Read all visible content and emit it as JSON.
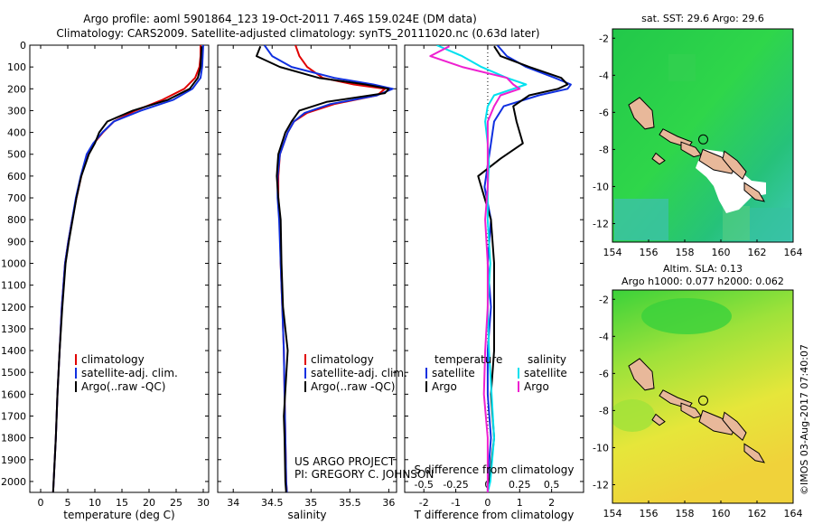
{
  "header": {
    "title_line1": "Argo profile: aoml 5901864_123 19-Oct-2011 7.46S 159.024E (DM data)",
    "title_line2": "Climatology: CARS2009. Satellite-adjusted climatology: synTS_20111020.nc (0.63d later)"
  },
  "footer": {
    "project": "US ARGO PROJECT",
    "pi": "PI: GREGORY C. JOHNSON",
    "stamp": "©IMOS 03-Aug-2017 07:40:07"
  },
  "colors": {
    "climatology": "#e00000",
    "satellite": "#1030e0",
    "argo": "#000000",
    "salinity_sat": "#00e0ee",
    "salinity_argo": "#ee20d0"
  },
  "chart_data": [
    {
      "type": "line",
      "title": "",
      "xlabel": "temperature (deg C)",
      "ylabel": "",
      "xlim": [
        -2,
        31
      ],
      "ylim": [
        2050,
        0
      ],
      "xticks": [
        0,
        5,
        10,
        15,
        20,
        25,
        30
      ],
      "xtick_labels": [
        "0",
        "5",
        "10",
        "15",
        "20",
        "25",
        "30"
      ],
      "yticks": [
        0,
        100,
        200,
        300,
        400,
        500,
        600,
        700,
        800,
        900,
        1000,
        1100,
        1200,
        1300,
        1400,
        1500,
        1600,
        1700,
        1800,
        1900,
        2000
      ],
      "ytick_labels": [
        "0",
        "100",
        "200",
        "300",
        "400",
        "500",
        "600",
        "700",
        "800",
        "900",
        "1000",
        "1100",
        "1200",
        "1300",
        "1400",
        "1500",
        "1600",
        "1700",
        "1800",
        "1900",
        "2000"
      ],
      "legend": [
        "climatology",
        "satellite-adj. clim.",
        "Argo(..raw -QC)"
      ],
      "series": [
        {
          "name": "climatology",
          "color": "#e00000",
          "x": [
            29.5,
            29.5,
            29.3,
            28.5,
            26.5,
            22.5,
            17.5,
            13.5,
            11.5,
            9.8,
            8.6,
            7.5,
            6.6,
            5.8,
            5.1,
            4.5,
            3.9,
            3.5,
            3.1,
            2.8,
            2.6,
            2.4,
            2.3
          ],
          "y": [
            0,
            50,
            100,
            150,
            200,
            250,
            300,
            350,
            400,
            450,
            500,
            600,
            700,
            800,
            900,
            1000,
            1200,
            1400,
            1600,
            1800,
            1900,
            2000,
            2050
          ]
        },
        {
          "name": "satellite-adj. clim.",
          "color": "#1030e0",
          "x": [
            30.0,
            29.9,
            29.8,
            29.5,
            28.0,
            24.5,
            18.5,
            13.5,
            11.4,
            9.7,
            8.5,
            7.4,
            6.5,
            5.8,
            5.1,
            4.5,
            3.9,
            3.5,
            3.1,
            2.8,
            2.6,
            2.4,
            2.3
          ],
          "y": [
            0,
            50,
            100,
            150,
            200,
            250,
            300,
            350,
            400,
            450,
            500,
            600,
            700,
            800,
            900,
            1000,
            1200,
            1400,
            1600,
            1800,
            1900,
            2000,
            2050
          ]
        },
        {
          "name": "Argo(..raw -QC)",
          "color": "#000000",
          "x": [
            29.7,
            29.6,
            29.5,
            29.0,
            27.5,
            23.5,
            17.0,
            12.3,
            10.8,
            10.0,
            8.9,
            7.5,
            6.6,
            5.9,
            5.2,
            4.6,
            4.0,
            3.5,
            3.1,
            2.8,
            2.6,
            2.4,
            2.3
          ],
          "y": [
            5,
            50,
            100,
            150,
            200,
            250,
            300,
            350,
            400,
            450,
            500,
            600,
            700,
            800,
            900,
            1000,
            1200,
            1400,
            1600,
            1800,
            1900,
            2000,
            2050
          ]
        }
      ]
    },
    {
      "type": "line",
      "title": "",
      "xlabel": "salinity",
      "ylabel": "",
      "xlim": [
        33.8,
        36.1
      ],
      "ylim": [
        2050,
        0
      ],
      "xticks": [
        34,
        34.5,
        35,
        35.5,
        36
      ],
      "xtick_labels": [
        "34",
        "34.5",
        "35",
        "35.5",
        "36"
      ],
      "legend": [
        "climatology",
        "satellite-adj. clim.",
        "Argo(..raw -QC)"
      ],
      "series": [
        {
          "name": "climatology",
          "color": "#e00000",
          "x": [
            34.8,
            34.85,
            34.95,
            35.15,
            35.55,
            35.95,
            35.85,
            35.3,
            34.95,
            34.78,
            34.7,
            34.6,
            34.58,
            34.58,
            34.6,
            34.61,
            34.63,
            34.65,
            34.66,
            34.67,
            34.68,
            34.69
          ],
          "y": [
            0,
            50,
            100,
            150,
            180,
            200,
            230,
            270,
            310,
            350,
            400,
            500,
            600,
            700,
            800,
            1000,
            1200,
            1400,
            1600,
            1800,
            2000,
            2050
          ]
        },
        {
          "name": "satellite-adj. clim.",
          "color": "#1030e0",
          "x": [
            34.4,
            34.5,
            34.75,
            35.3,
            35.8,
            36.05,
            35.85,
            35.25,
            34.92,
            34.78,
            34.7,
            34.6,
            34.57,
            34.57,
            34.59,
            34.61,
            34.63,
            34.65,
            34.66,
            34.67,
            34.68,
            34.69
          ],
          "y": [
            0,
            50,
            100,
            150,
            180,
            200,
            230,
            270,
            310,
            350,
            400,
            500,
            600,
            700,
            800,
            1000,
            1200,
            1400,
            1600,
            1800,
            2000,
            2050
          ]
        },
        {
          "name": "Argo(..raw -QC)",
          "color": "#000000",
          "x": [
            34.35,
            34.3,
            34.6,
            35.1,
            35.7,
            36.0,
            35.95,
            35.2,
            34.85,
            34.75,
            34.67,
            34.58,
            34.56,
            34.58,
            34.61,
            34.62,
            34.64,
            34.7,
            34.65,
            34.66,
            34.67,
            34.68
          ],
          "y": [
            5,
            50,
            100,
            150,
            180,
            200,
            220,
            260,
            300,
            350,
            400,
            500,
            600,
            700,
            800,
            1000,
            1200,
            1400,
            1700,
            1800,
            2000,
            2050
          ]
        }
      ]
    },
    {
      "type": "line",
      "title": "",
      "xlabel": "T difference from climatology",
      "xlabel2": "S difference from climatology",
      "ylabel": "",
      "xlim": [
        -2.6,
        3.0
      ],
      "ylim": [
        2050,
        0
      ],
      "xticks": [
        -2,
        -1,
        0,
        1,
        2
      ],
      "xtick_labels": [
        "-2",
        "-1",
        "0",
        "1",
        "2"
      ],
      "xticks2": [
        -0.5,
        -0.25,
        0,
        0.25,
        0.5
      ],
      "xtick2_labels": [
        "-0.5",
        "-0.25",
        "0",
        "0.25",
        "0.5"
      ],
      "legend_groups": {
        "left_title": "temperature",
        "right_title": "salinity",
        "left": [
          "satellite",
          "Argo"
        ],
        "right": [
          "satellite",
          "Argo"
        ]
      },
      "series": [
        {
          "name": "temperature satellite",
          "group": "temperature",
          "color": "#1030e0",
          "x": [
            0.3,
            0.6,
            1.2,
            2.1,
            2.6,
            2.5,
            1.6,
            0.5,
            0.2,
            0.1,
            0,
            -0.1,
            0.1,
            0,
            0.1,
            0,
            0,
            0.1,
            0,
            0
          ],
          "y": [
            0,
            50,
            100,
            150,
            180,
            200,
            230,
            280,
            350,
            450,
            550,
            650,
            800,
            1000,
            1200,
            1400,
            1600,
            1800,
            2000,
            2050
          ]
        },
        {
          "name": "temperature Argo",
          "group": "temperature",
          "color": "#000000",
          "x": [
            0.2,
            0.4,
            1.3,
            2.3,
            2.5,
            2.2,
            1.3,
            0.8,
            0.9,
            1.1,
            0.4,
            -0.3,
            0.1,
            0.2,
            0.2,
            0.2,
            0.1,
            0.2,
            0.05,
            0.0
          ],
          "y": [
            5,
            50,
            100,
            150,
            180,
            200,
            230,
            280,
            350,
            450,
            520,
            600,
            800,
            1000,
            1200,
            1400,
            1600,
            1800,
            2000,
            2050
          ]
        },
        {
          "name": "salinity satellite",
          "group": "salinity",
          "color": "#00e0ee",
          "x": [
            -0.4,
            -0.2,
            -0.05,
            0.15,
            0.3,
            0.2,
            0.05,
            0,
            -0.02,
            0,
            0.01,
            0,
            0,
            0.02,
            0,
            0.01,
            0.03,
            0.05,
            0.02,
            0
          ],
          "y": [
            0,
            50,
            100,
            150,
            180,
            200,
            230,
            280,
            350,
            450,
            550,
            650,
            800,
            1000,
            1200,
            1400,
            1600,
            1800,
            2000,
            2050
          ]
        },
        {
          "name": "salinity Argo",
          "group": "salinity",
          "color": "#ee20d0",
          "x": [
            -0.3,
            -0.45,
            -0.2,
            0.15,
            0.2,
            0.25,
            0.1,
            0.05,
            0,
            0,
            0,
            0,
            -0.02,
            0,
            0,
            -0.02,
            -0.03,
            0,
            0,
            0
          ],
          "y": [
            5,
            50,
            100,
            150,
            180,
            200,
            230,
            280,
            350,
            450,
            550,
            650,
            800,
            1000,
            1200,
            1400,
            1600,
            1800,
            2000,
            2050
          ]
        }
      ]
    },
    {
      "type": "heatmap",
      "title": "sat. SST: 29.6 Argo: 29.6",
      "xlim": [
        154,
        164
      ],
      "ylim": [
        -13,
        -1.5
      ],
      "xticks": [
        154,
        156,
        158,
        160,
        162,
        164
      ],
      "xtick_labels": [
        "154",
        "156",
        "158",
        "160",
        "162",
        "164"
      ],
      "yticks": [
        -2,
        -4,
        -6,
        -8,
        -10,
        -12
      ],
      "ytick_labels": [
        "-2",
        "-4",
        "-6",
        "-8",
        "-10",
        "-12"
      ],
      "marker": {
        "lon": 159.024,
        "lat": -7.46
      }
    },
    {
      "type": "heatmap",
      "title": "Altim. SLA: 0.13",
      "subtitle": "Argo h1000: 0.077 h2000: 0.062",
      "xlim": [
        154,
        164
      ],
      "ylim": [
        -13,
        -1.5
      ],
      "xticks": [
        154,
        156,
        158,
        160,
        162,
        164
      ],
      "xtick_labels": [
        "154",
        "156",
        "158",
        "160",
        "162",
        "164"
      ],
      "yticks": [
        -2,
        -4,
        -6,
        -8,
        -10,
        -12
      ],
      "ytick_labels": [
        "-2",
        "-4",
        "-6",
        "-8",
        "-10",
        "-12"
      ],
      "marker": {
        "lon": 159.024,
        "lat": -7.46
      }
    }
  ]
}
